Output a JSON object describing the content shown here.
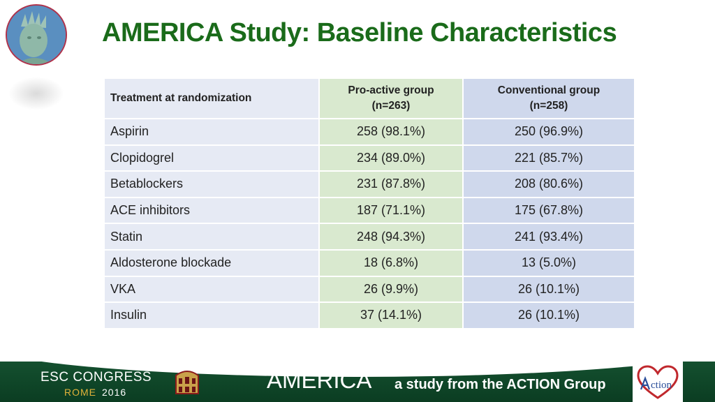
{
  "header": {
    "title": "AMERICA Study: Baseline Characteristics",
    "logo_icon": "statue-of-liberty-icon"
  },
  "table": {
    "columns": [
      {
        "label": "Treatment at randomization"
      },
      {
        "label_line1": "Pro-active group",
        "label_line2": "(n=263)"
      },
      {
        "label_line1": "Conventional group",
        "label_line2": "(n=258)"
      }
    ],
    "rows": [
      {
        "treatment": "Aspirin",
        "proactive": "258 (98.1%)",
        "conventional": "250 (96.9%)"
      },
      {
        "treatment": "Clopidogrel",
        "proactive": "234 (89.0%)",
        "conventional": "221 (85.7%)"
      },
      {
        "treatment": "Betablockers",
        "proactive": "231 (87.8%)",
        "conventional": "208 (80.6%)"
      },
      {
        "treatment": "ACE inhibitors",
        "proactive": "187 (71.1%)",
        "conventional": "175 (67.8%)"
      },
      {
        "treatment": "Statin",
        "proactive": "248 (94.3%)",
        "conventional": "241 (93.4%)"
      },
      {
        "treatment": "Aldosterone blockade",
        "proactive": "18 (6.8%)",
        "conventional": "13 (5.0%)"
      },
      {
        "treatment": "VKA",
        "proactive": "26 (9.9%)",
        "conventional": "26 (10.1%)"
      },
      {
        "treatment": "Insulin",
        "proactive": "37 (14.1%)",
        "conventional": "26 (10.1%)"
      }
    ]
  },
  "footer": {
    "congress_line1": "ESC CONGRESS",
    "congress_city": "ROME",
    "congress_year": "2016",
    "study_name": "AMERICA",
    "tagline": "a study from the ACTION Group",
    "action_logo_text": "ction",
    "action_logo_icon": "heart-outline-icon"
  },
  "colors": {
    "title_green": "#1a6b1a",
    "footer_green": "#0b3d22",
    "col1_bg": "#e6eaf4",
    "col2_bg": "#d9e9cf",
    "col3_bg": "#cfd8ec"
  }
}
